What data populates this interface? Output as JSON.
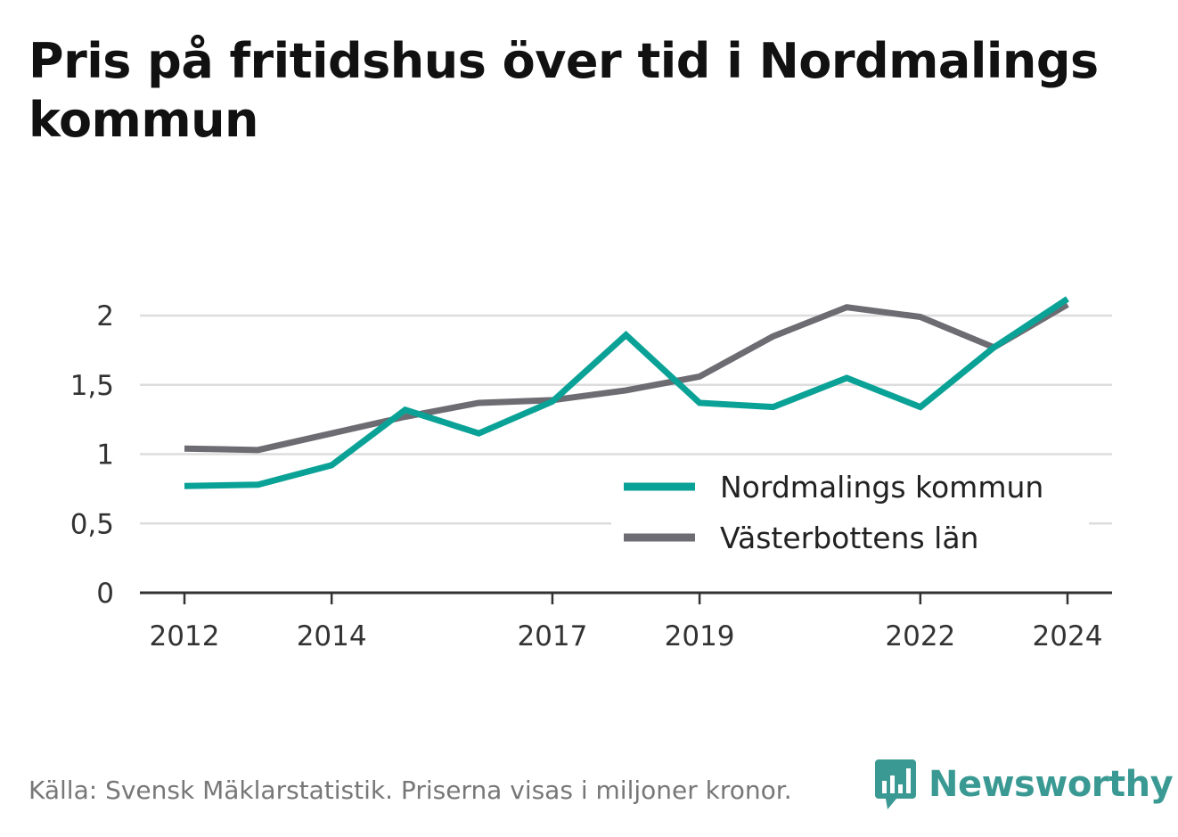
{
  "title": "Pris på fritidshus över tid i Nordmalings kommun",
  "footer": "Källa: Svensk Mäklarstatistik. Priserna visas i miljoner kronor.",
  "brand": {
    "name": "Newsworthy",
    "icon": "newsworthy-logo-icon",
    "color": "#3a9a93"
  },
  "chart_data": {
    "type": "line",
    "x": [
      2012,
      2013,
      2014,
      2015,
      2016,
      2017,
      2018,
      2019,
      2020,
      2021,
      2022,
      2023,
      2024
    ],
    "x_tick_labels": [
      "2012",
      "2014",
      "2017",
      "2019",
      "2022",
      "2024"
    ],
    "x_tick_values": [
      2012,
      2014,
      2017,
      2019,
      2022,
      2024
    ],
    "y_ticks": [
      0,
      0.5,
      1,
      1.5,
      2
    ],
    "y_tick_labels": [
      "0",
      "0,5",
      "1",
      "1,5",
      "2"
    ],
    "ylim": [
      0,
      2.2
    ],
    "xlim": [
      2011.4,
      2024.6
    ],
    "grid": true,
    "legend_position": "bottom-right",
    "series": [
      {
        "name": "Nordmalings kommun",
        "color": "#0aa296",
        "values": [
          0.77,
          0.78,
          0.92,
          1.32,
          1.15,
          1.38,
          1.86,
          1.37,
          1.34,
          1.55,
          1.34,
          1.77,
          2.12
        ]
      },
      {
        "name": "Västerbottens län",
        "color": "#6d6c72",
        "values": [
          1.04,
          1.03,
          1.15,
          1.27,
          1.37,
          1.39,
          1.46,
          1.56,
          1.85,
          2.06,
          1.99,
          1.77,
          2.08
        ]
      }
    ]
  }
}
